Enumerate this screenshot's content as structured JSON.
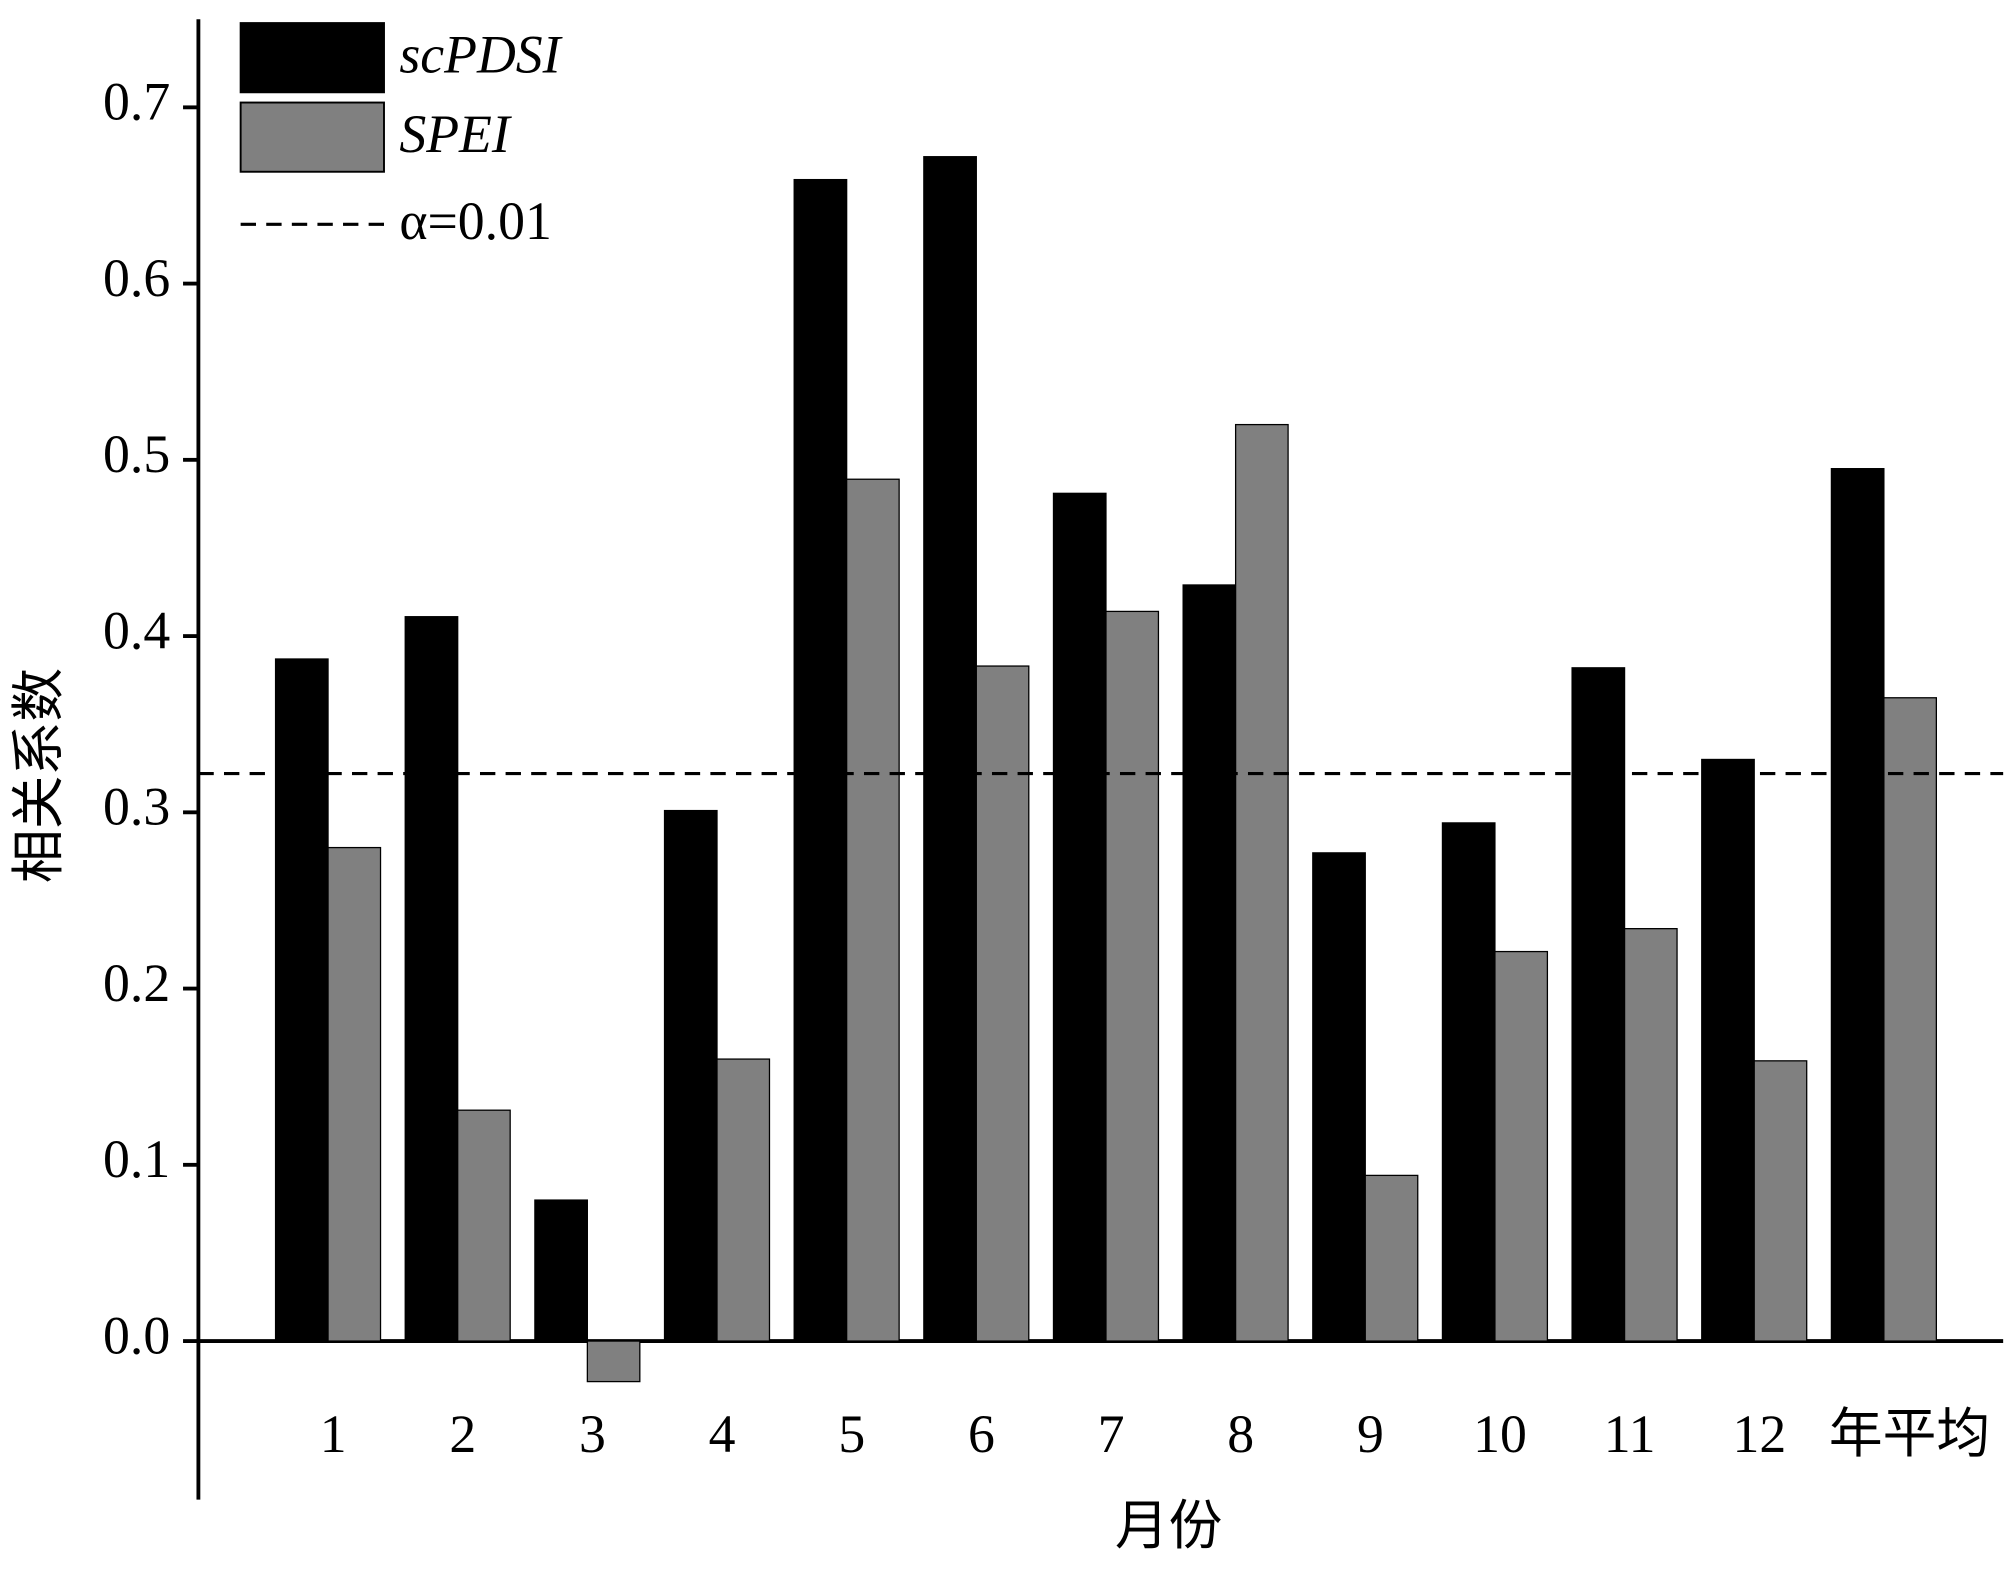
{
  "chart_data": {
    "type": "bar",
    "xlabel": "月份",
    "ylabel": "相关系数",
    "categories": [
      "1",
      "2",
      "3",
      "4",
      "5",
      "6",
      "7",
      "8",
      "9",
      "10",
      "11",
      "12",
      "年平均"
    ],
    "series": [
      {
        "name": "scPDSI",
        "color": "#000000",
        "values": [
          0.387,
          0.411,
          0.08,
          0.301,
          0.659,
          0.672,
          0.481,
          0.429,
          0.277,
          0.294,
          0.382,
          0.33,
          0.495
        ]
      },
      {
        "name": "SPEI",
        "color": "#808080",
        "values": [
          0.28,
          0.131,
          -0.023,
          0.16,
          0.489,
          0.383,
          0.414,
          0.52,
          0.094,
          0.221,
          0.234,
          0.159,
          0.365
        ]
      }
    ],
    "threshold": {
      "name": "α=0.01",
      "value": 0.322
    },
    "ylim": [
      -0.09,
      0.75
    ],
    "yticks": [
      {
        "value": 0,
        "label": "0.0"
      },
      0.1,
      0.2,
      0.3,
      0.4,
      0.5,
      0.6,
      0.7
    ],
    "legend": "top-left"
  }
}
